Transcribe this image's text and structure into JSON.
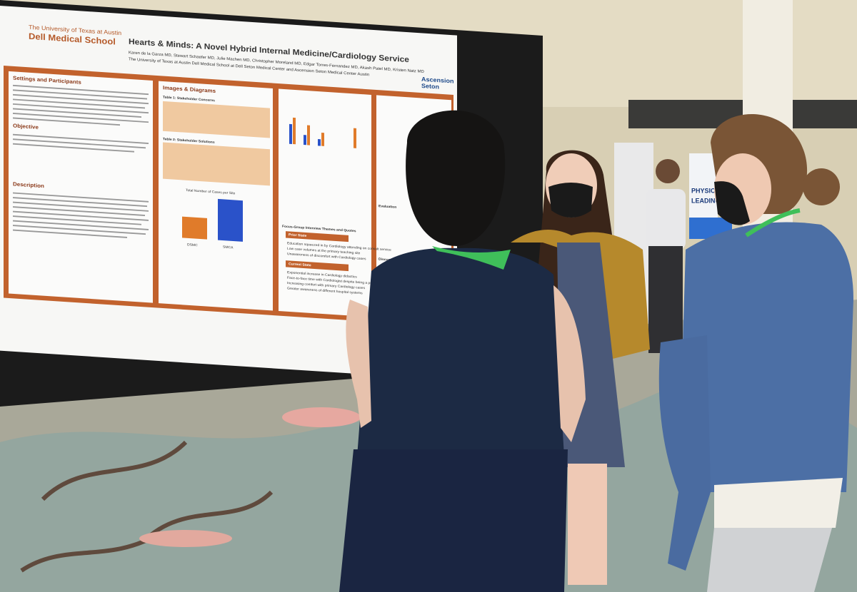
{
  "poster": {
    "institution": "The University of Texas at Austin",
    "school": "Dell Medical School",
    "title": "Hearts & Minds: A Novel Hybrid Internal Medicine/Cardiology Service",
    "authors": "Karen de la Garza MD, Stewart Schaefer MD, Julie Machen MD, Christopher Moreland MD, Edgar Torres-Fernandez MD, Akash Patel MD, Kristen Natz MD",
    "affiliation": "The University of Texas at Austin Dell Medical School at Dell Seton Medical Center and Ascension Seton Medical Center Austin",
    "partner": [
      "Ascension",
      "Seton"
    ],
    "sections": {
      "settings": "Settings and Participants",
      "objective": "Objective",
      "description": "Description",
      "images": "Images & Diagrams",
      "table1": "Table 1: Stakeholder Concerns",
      "table2": "Table 2: Stakeholder Solutions",
      "chart_title": "Total Number of Cases per Site",
      "sites": [
        "DSMC",
        "SMCA"
      ],
      "focus": "Focus-Group Interview Themes and Quotes",
      "evaluation": "Evaluation",
      "discussion": "Discussion/Reflection"
    },
    "prior_state": {
      "heading": "Prior State",
      "items": [
        "Education squeezed in by Cardiology attending on consult service",
        "Low case volumes at the primary teaching site",
        "Unawareness of discomfort with Cardiology cases"
      ]
    },
    "current_state": {
      "heading": "Current State",
      "items": [
        "Exponential increase in Cardiology didactics",
        "Face-to-face time with Cardiologist despite being a primary medicine team",
        "Increasing comfort with primary Cardiology cases",
        "Greater awareness of different hospital systems"
      ]
    }
  },
  "banner": [
    "PHYSICIAN",
    "LEADING"
  ]
}
